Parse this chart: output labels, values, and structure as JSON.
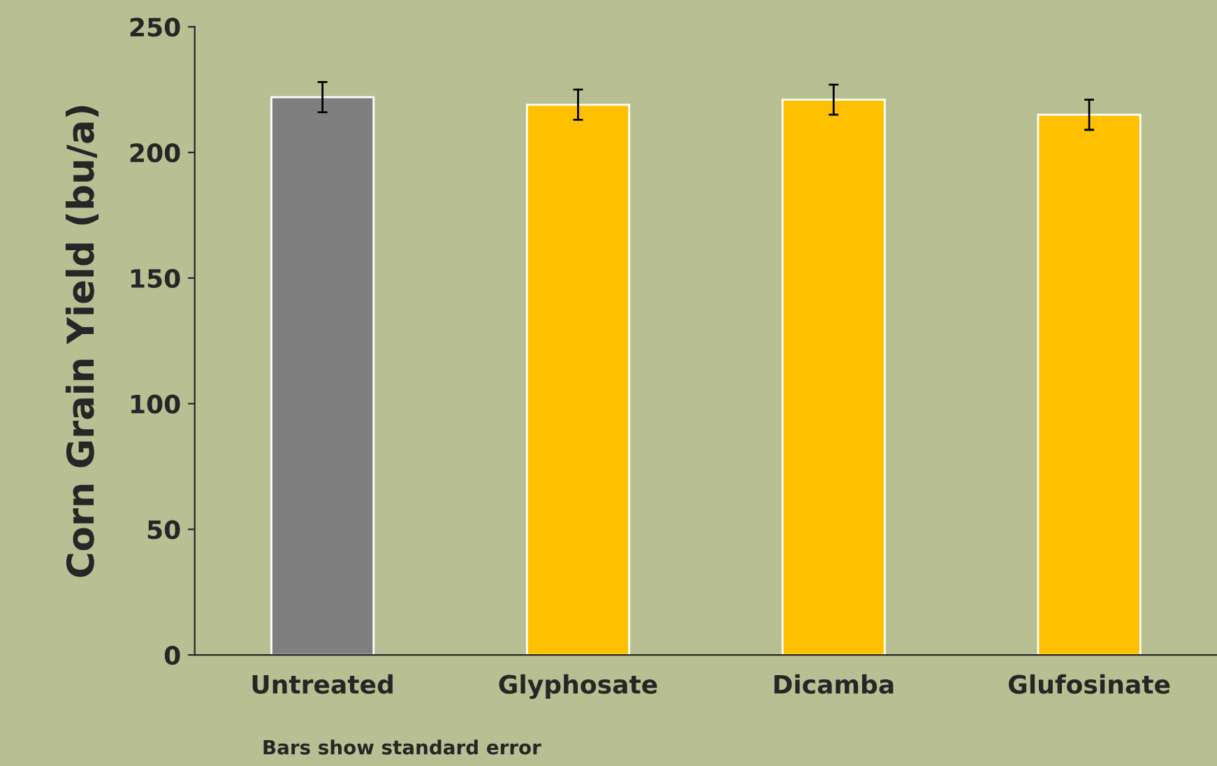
{
  "chart_data": {
    "type": "bar",
    "ylabel": "Corn Grain Yield (bu/a)",
    "categories": [
      "Untreated",
      "Glyphosate",
      "Dicamba",
      "Glufosinate"
    ],
    "values": [
      222,
      219,
      221,
      215
    ],
    "errors": [
      6,
      6,
      6,
      6
    ],
    "colors": [
      "#7f7f7f",
      "#ffc000",
      "#ffc000",
      "#ffc000"
    ],
    "ylim": [
      0,
      250
    ],
    "yticks": [
      0,
      50,
      100,
      150,
      200,
      250
    ],
    "grid": false,
    "legend": false,
    "annotations": [
      "Bars show standard error"
    ]
  }
}
